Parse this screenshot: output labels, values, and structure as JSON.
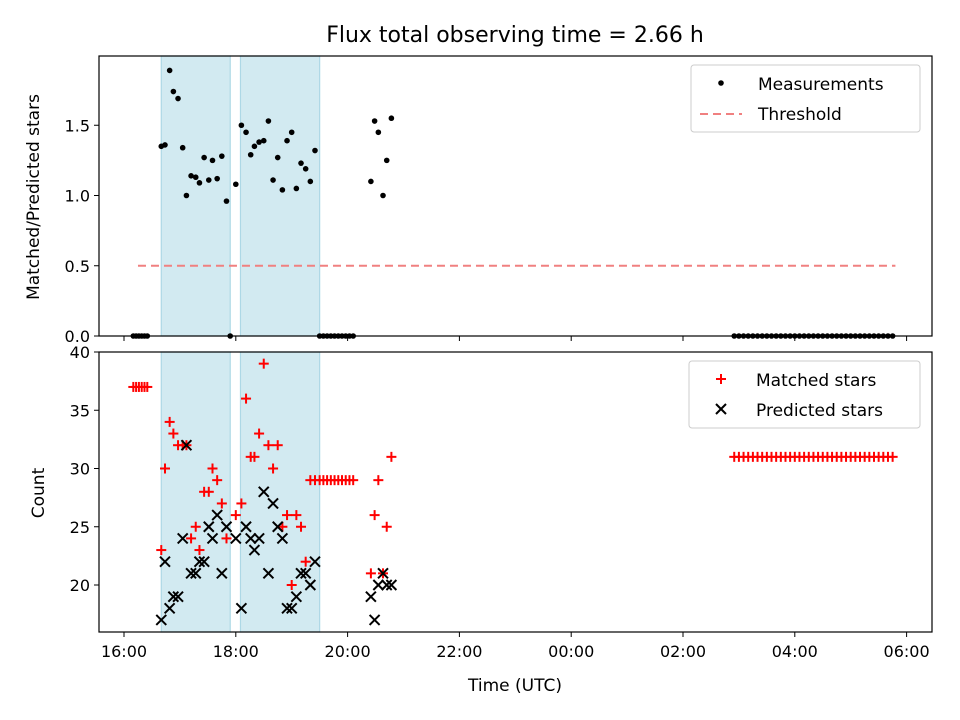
{
  "title": "Flux total observing time = 2.66 h",
  "colors": {
    "shade": "#add8e6",
    "measurement": "#000000",
    "threshold": "#f08080",
    "matched": "#ff0000",
    "predicted": "#000000"
  },
  "chart_data": [
    {
      "type": "scatter",
      "ylabel": "Matched/Predicted stars",
      "xlabel": "",
      "xlim": [
        "16:00",
        "06:20"
      ],
      "ylim": [
        0,
        2.0
      ],
      "yticks": [
        "0.0",
        "0.5",
        "1.0",
        "1.5"
      ],
      "legend_placement": "top-right",
      "legend": [
        "Measurements",
        "Threshold"
      ],
      "shaded_intervals": [
        [
          "16:40",
          "17:54"
        ],
        [
          "18:05",
          "19:30"
        ]
      ],
      "threshold": {
        "value": 0.5,
        "x_range": [
          "16:15",
          "05:48"
        ]
      },
      "series": [
        {
          "name": "Measurements",
          "points": [
            [
              "16:10",
              0
            ],
            [
              "16:13",
              0
            ],
            [
              "16:16",
              0
            ],
            [
              "16:19",
              0
            ],
            [
              "16:22",
              0
            ],
            [
              "16:25",
              0
            ],
            [
              "16:40",
              1.35
            ],
            [
              "16:44",
              1.36
            ],
            [
              "16:49",
              1.89
            ],
            [
              "16:53",
              1.74
            ],
            [
              "16:58",
              1.69
            ],
            [
              "17:03",
              1.34
            ],
            [
              "17:07",
              1.0
            ],
            [
              "17:12",
              1.14
            ],
            [
              "17:17",
              1.13
            ],
            [
              "17:21",
              1.09
            ],
            [
              "17:26",
              1.27
            ],
            [
              "17:31",
              1.11
            ],
            [
              "17:35",
              1.25
            ],
            [
              "17:40",
              1.12
            ],
            [
              "17:45",
              1.28
            ],
            [
              "17:50",
              0.96
            ],
            [
              "17:54",
              0
            ],
            [
              "18:00",
              1.08
            ],
            [
              "18:06",
              1.5
            ],
            [
              "18:11",
              1.45
            ],
            [
              "18:16",
              1.29
            ],
            [
              "18:20",
              1.35
            ],
            [
              "18:25",
              1.38
            ],
            [
              "18:30",
              1.39
            ],
            [
              "18:35",
              1.53
            ],
            [
              "18:40",
              1.11
            ],
            [
              "18:45",
              1.27
            ],
            [
              "18:50",
              1.04
            ],
            [
              "18:55",
              1.39
            ],
            [
              "19:00",
              1.45
            ],
            [
              "19:05",
              1.05
            ],
            [
              "19:10",
              1.23
            ],
            [
              "19:15",
              1.19
            ],
            [
              "19:20",
              1.1
            ],
            [
              "19:25",
              1.32
            ],
            [
              "19:30",
              0
            ],
            [
              "19:34",
              0
            ],
            [
              "19:38",
              0
            ],
            [
              "19:42",
              0
            ],
            [
              "19:46",
              0
            ],
            [
              "19:50",
              0
            ],
            [
              "19:54",
              0
            ],
            [
              "19:58",
              0
            ],
            [
              "20:02",
              0
            ],
            [
              "20:06",
              0
            ],
            [
              "20:25",
              1.1
            ],
            [
              "20:29",
              1.53
            ],
            [
              "20:33",
              1.45
            ],
            [
              "20:38",
              1.0
            ],
            [
              "20:42",
              1.25
            ],
            [
              "20:47",
              1.55
            ],
            [
              "02:55",
              0
            ],
            [
              "03:00",
              0
            ],
            [
              "03:05",
              0
            ],
            [
              "03:10",
              0
            ],
            [
              "03:15",
              0
            ],
            [
              "03:20",
              0
            ],
            [
              "03:25",
              0
            ],
            [
              "03:30",
              0
            ],
            [
              "03:35",
              0
            ],
            [
              "03:40",
              0
            ],
            [
              "03:45",
              0
            ],
            [
              "03:50",
              0
            ],
            [
              "03:55",
              0
            ],
            [
              "04:00",
              0
            ],
            [
              "04:05",
              0
            ],
            [
              "04:10",
              0
            ],
            [
              "04:15",
              0
            ],
            [
              "04:20",
              0
            ],
            [
              "04:25",
              0
            ],
            [
              "04:30",
              0
            ],
            [
              "04:35",
              0
            ],
            [
              "04:40",
              0
            ],
            [
              "04:45",
              0
            ],
            [
              "04:50",
              0
            ],
            [
              "04:55",
              0
            ],
            [
              "05:00",
              0
            ],
            [
              "05:05",
              0
            ],
            [
              "05:10",
              0
            ],
            [
              "05:15",
              0
            ],
            [
              "05:20",
              0
            ],
            [
              "05:25",
              0
            ],
            [
              "05:30",
              0
            ],
            [
              "05:35",
              0
            ],
            [
              "05:40",
              0
            ],
            [
              "05:45",
              0
            ]
          ]
        }
      ]
    },
    {
      "type": "scatter",
      "ylabel": "Count",
      "xlabel": "Time (UTC)",
      "xlim": [
        "16:00",
        "06:20"
      ],
      "ylim": [
        15.7,
        40
      ],
      "yticks": [
        "20",
        "25",
        "30",
        "35",
        "40"
      ],
      "xticks": [
        "16:00",
        "18:00",
        "20:00",
        "22:00",
        "00:00",
        "02:00",
        "04:00",
        "06:00"
      ],
      "legend_placement": "top-right",
      "legend": [
        "Matched stars",
        "Predicted stars"
      ],
      "shaded_intervals": [
        [
          "16:40",
          "17:54"
        ],
        [
          "18:05",
          "19:30"
        ]
      ],
      "series": [
        {
          "name": "Matched stars",
          "points": [
            [
              "16:10",
              37
            ],
            [
              "16:13",
              37
            ],
            [
              "16:16",
              37
            ],
            [
              "16:19",
              37
            ],
            [
              "16:22",
              37
            ],
            [
              "16:25",
              37
            ],
            [
              "16:40",
              23
            ],
            [
              "16:44",
              30
            ],
            [
              "16:49",
              34
            ],
            [
              "16:53",
              33
            ],
            [
              "16:58",
              32
            ],
            [
              "17:03",
              32
            ],
            [
              "17:07",
              32
            ],
            [
              "17:12",
              24
            ],
            [
              "17:17",
              25
            ],
            [
              "17:21",
              23
            ],
            [
              "17:26",
              28
            ],
            [
              "17:31",
              28
            ],
            [
              "17:35",
              30
            ],
            [
              "17:40",
              29
            ],
            [
              "17:45",
              27
            ],
            [
              "17:50",
              24
            ],
            [
              "18:00",
              26
            ],
            [
              "18:06",
              27
            ],
            [
              "18:11",
              36
            ],
            [
              "18:16",
              31
            ],
            [
              "18:20",
              31
            ],
            [
              "18:25",
              33
            ],
            [
              "18:30",
              39
            ],
            [
              "18:35",
              32
            ],
            [
              "18:40",
              30
            ],
            [
              "18:45",
              32
            ],
            [
              "18:50",
              25
            ],
            [
              "18:55",
              26
            ],
            [
              "19:00",
              20
            ],
            [
              "19:05",
              26
            ],
            [
              "19:10",
              25
            ],
            [
              "19:15",
              22
            ],
            [
              "19:20",
              29
            ],
            [
              "19:25",
              29
            ],
            [
              "19:30",
              29
            ],
            [
              "19:34",
              29
            ],
            [
              "19:38",
              29
            ],
            [
              "19:42",
              29
            ],
            [
              "19:46",
              29
            ],
            [
              "19:50",
              29
            ],
            [
              "19:54",
              29
            ],
            [
              "19:58",
              29
            ],
            [
              "20:02",
              29
            ],
            [
              "20:06",
              29
            ],
            [
              "20:25",
              21
            ],
            [
              "20:29",
              26
            ],
            [
              "20:33",
              29
            ],
            [
              "20:38",
              21
            ],
            [
              "20:42",
              25
            ],
            [
              "20:47",
              31
            ],
            [
              "02:55",
              31
            ],
            [
              "03:00",
              31
            ],
            [
              "03:05",
              31
            ],
            [
              "03:10",
              31
            ],
            [
              "03:15",
              31
            ],
            [
              "03:20",
              31
            ],
            [
              "03:25",
              31
            ],
            [
              "03:30",
              31
            ],
            [
              "03:35",
              31
            ],
            [
              "03:40",
              31
            ],
            [
              "03:45",
              31
            ],
            [
              "03:50",
              31
            ],
            [
              "03:55",
              31
            ],
            [
              "04:00",
              31
            ],
            [
              "04:05",
              31
            ],
            [
              "04:10",
              31
            ],
            [
              "04:15",
              31
            ],
            [
              "04:20",
              31
            ],
            [
              "04:25",
              31
            ],
            [
              "04:30",
              31
            ],
            [
              "04:35",
              31
            ],
            [
              "04:40",
              31
            ],
            [
              "04:45",
              31
            ],
            [
              "04:50",
              31
            ],
            [
              "04:55",
              31
            ],
            [
              "05:00",
              31
            ],
            [
              "05:05",
              31
            ],
            [
              "05:10",
              31
            ],
            [
              "05:15",
              31
            ],
            [
              "05:20",
              31
            ],
            [
              "05:25",
              31
            ],
            [
              "05:30",
              31
            ],
            [
              "05:35",
              31
            ],
            [
              "05:40",
              31
            ],
            [
              "05:45",
              31
            ]
          ]
        },
        {
          "name": "Predicted stars",
          "points": [
            [
              "16:40",
              17
            ],
            [
              "16:44",
              22
            ],
            [
              "16:49",
              18
            ],
            [
              "16:53",
              19
            ],
            [
              "16:58",
              19
            ],
            [
              "17:03",
              24
            ],
            [
              "17:07",
              32
            ],
            [
              "17:12",
              21
            ],
            [
              "17:17",
              21
            ],
            [
              "17:21",
              22
            ],
            [
              "17:26",
              22
            ],
            [
              "17:31",
              25
            ],
            [
              "17:35",
              24
            ],
            [
              "17:40",
              26
            ],
            [
              "17:45",
              21
            ],
            [
              "17:50",
              25
            ],
            [
              "18:00",
              24
            ],
            [
              "18:06",
              18
            ],
            [
              "18:11",
              25
            ],
            [
              "18:16",
              24
            ],
            [
              "18:20",
              23
            ],
            [
              "18:25",
              24
            ],
            [
              "18:30",
              28
            ],
            [
              "18:35",
              21
            ],
            [
              "18:40",
              27
            ],
            [
              "18:45",
              25
            ],
            [
              "18:50",
              24
            ],
            [
              "18:55",
              18
            ],
            [
              "19:00",
              18
            ],
            [
              "19:05",
              19
            ],
            [
              "19:10",
              21
            ],
            [
              "19:15",
              21
            ],
            [
              "19:20",
              20
            ],
            [
              "19:25",
              22
            ],
            [
              "20:25",
              19
            ],
            [
              "20:29",
              17
            ],
            [
              "20:33",
              20
            ],
            [
              "20:38",
              21
            ],
            [
              "20:42",
              20
            ],
            [
              "20:47",
              20
            ]
          ]
        }
      ]
    }
  ]
}
